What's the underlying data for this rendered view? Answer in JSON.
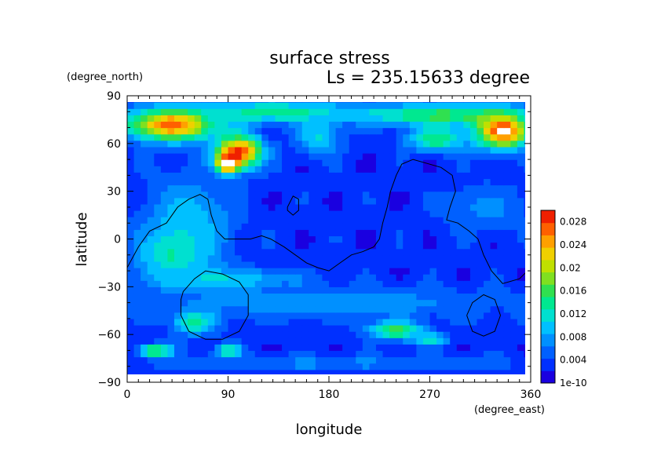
{
  "chart_data": {
    "type": "heatmap",
    "title": "surface stress",
    "subtitle": "Ls = 235.15633 degree",
    "xlabel": "longitude",
    "ylabel": "latitude",
    "x_units": "(degree_east)",
    "y_units": "(degree_north)",
    "xlim": [
      0,
      360
    ],
    "ylim": [
      -90,
      90
    ],
    "x_ticks": [
      "0",
      "90",
      "180",
      "270",
      "360"
    ],
    "y_ticks": [
      "90",
      "60",
      "30",
      "0",
      "−30",
      "−60",
      "−90"
    ],
    "colorbar": {
      "min": 0,
      "max": 0.03,
      "labels": [
        "1e-10",
        "0.004",
        "0.008",
        "0.012",
        "0.016",
        "0.02",
        "0.024",
        "0.028"
      ],
      "colors": [
        "#1a00e0",
        "#0030ff",
        "#0060ff",
        "#0090ff",
        "#00c0ff",
        "#00e0d0",
        "#00e890",
        "#30e050",
        "#80e020",
        "#c0e000",
        "#f0d000",
        "#ffa000",
        "#ff6000",
        "#f02000",
        "#ffffff"
      ]
    },
    "base_value": 0.003,
    "blobs": [
      {
        "lon": 40,
        "lat": 72,
        "rlon": 40,
        "rlat": 10,
        "value": 0.027
      },
      {
        "lon": 100,
        "lat": 55,
        "rlon": 20,
        "rlat": 10,
        "value": 0.029
      },
      {
        "lon": 90,
        "lat": 48,
        "rlon": 10,
        "rlat": 6,
        "value": 0.032
      },
      {
        "lon": 130,
        "lat": 80,
        "rlon": 80,
        "rlat": 7,
        "value": 0.014
      },
      {
        "lon": 280,
        "lat": 78,
        "rlon": 70,
        "rlat": 7,
        "value": 0.016
      },
      {
        "lon": 335,
        "lat": 68,
        "rlon": 25,
        "rlat": 11,
        "value": 0.028
      },
      {
        "lon": 337,
        "lat": 69,
        "rlon": 6,
        "rlat": 3,
        "value": 0.032
      },
      {
        "lon": 275,
        "lat": 63,
        "rlon": 25,
        "rlat": 8,
        "value": 0.015
      },
      {
        "lon": 170,
        "lat": 65,
        "rlon": 20,
        "rlat": 12,
        "value": 0.011
      },
      {
        "lon": 55,
        "lat": 10,
        "rlon": 40,
        "rlat": 30,
        "value": 0.01
      },
      {
        "lon": 40,
        "lat": -10,
        "rlon": 30,
        "rlat": 15,
        "value": 0.013
      },
      {
        "lon": 80,
        "lat": -25,
        "rlon": 70,
        "rlat": 7,
        "value": 0.011
      },
      {
        "lon": 60,
        "lat": -52,
        "rlon": 20,
        "rlat": 8,
        "value": 0.014
      },
      {
        "lon": 25,
        "lat": -70,
        "rlon": 15,
        "rlat": 4,
        "value": 0.018
      },
      {
        "lon": 90,
        "lat": -70,
        "rlon": 12,
        "rlat": 4,
        "value": 0.015
      },
      {
        "lon": 240,
        "lat": -57,
        "rlon": 25,
        "rlat": 6,
        "value": 0.016
      },
      {
        "lon": 270,
        "lat": -63,
        "rlon": 15,
        "rlat": 4,
        "value": 0.013
      },
      {
        "lon": 180,
        "lat": -40,
        "rlon": 170,
        "rlat": 10,
        "value": 0.008
      },
      {
        "lon": 180,
        "lat": -78,
        "rlon": 170,
        "rlat": 5,
        "value": 0.007
      },
      {
        "lon": 200,
        "lat": 0,
        "rlon": 60,
        "rlat": 30,
        "value": 0.0005
      },
      {
        "lon": 320,
        "lat": 20,
        "rlon": 40,
        "rlat": 15,
        "value": 0.007
      }
    ],
    "contours": [
      [
        [
          0,
          -18
        ],
        [
          10,
          -5
        ],
        [
          20,
          5
        ],
        [
          35,
          10
        ],
        [
          45,
          20
        ],
        [
          55,
          25
        ],
        [
          65,
          28
        ],
        [
          72,
          25
        ],
        [
          75,
          15
        ],
        [
          80,
          5
        ],
        [
          87,
          0
        ],
        [
          100,
          0
        ],
        [
          110,
          0
        ],
        [
          120,
          2
        ],
        [
          128,
          0
        ],
        [
          140,
          -5
        ],
        [
          150,
          -10
        ],
        [
          160,
          -15
        ],
        [
          170,
          -18
        ],
        [
          180,
          -20
        ],
        [
          190,
          -15
        ],
        [
          200,
          -10
        ],
        [
          210,
          -8
        ],
        [
          220,
          -5
        ],
        [
          225,
          0
        ],
        [
          228,
          10
        ],
        [
          232,
          20
        ],
        [
          235,
          30
        ],
        [
          240,
          40
        ],
        [
          245,
          47
        ],
        [
          255,
          50
        ],
        [
          265,
          48
        ],
        [
          280,
          45
        ],
        [
          290,
          40
        ],
        [
          293,
          30
        ],
        [
          288,
          20
        ],
        [
          285,
          12
        ],
        [
          295,
          10
        ],
        [
          305,
          5
        ],
        [
          313,
          0
        ],
        [
          318,
          -10
        ],
        [
          325,
          -20
        ],
        [
          335,
          -28
        ],
        [
          350,
          -25
        ],
        [
          360,
          -18
        ]
      ],
      [
        [
          143,
          20
        ],
        [
          148,
          27
        ],
        [
          153,
          25
        ],
        [
          153,
          18
        ],
        [
          148,
          15
        ],
        [
          143,
          18
        ],
        [
          143,
          20
        ]
      ],
      [
        [
          50,
          -33
        ],
        [
          60,
          -25
        ],
        [
          70,
          -20
        ],
        [
          85,
          -22
        ],
        [
          100,
          -27
        ],
        [
          108,
          -35
        ],
        [
          108,
          -48
        ],
        [
          100,
          -58
        ],
        [
          85,
          -63
        ],
        [
          70,
          -63
        ],
        [
          55,
          -58
        ],
        [
          48,
          -48
        ],
        [
          48,
          -38
        ],
        [
          50,
          -33
        ]
      ],
      [
        [
          303,
          -48
        ],
        [
          308,
          -40
        ],
        [
          318,
          -35
        ],
        [
          328,
          -38
        ],
        [
          333,
          -48
        ],
        [
          328,
          -58
        ],
        [
          318,
          -61
        ],
        [
          308,
          -58
        ],
        [
          303,
          -48
        ]
      ]
    ]
  }
}
